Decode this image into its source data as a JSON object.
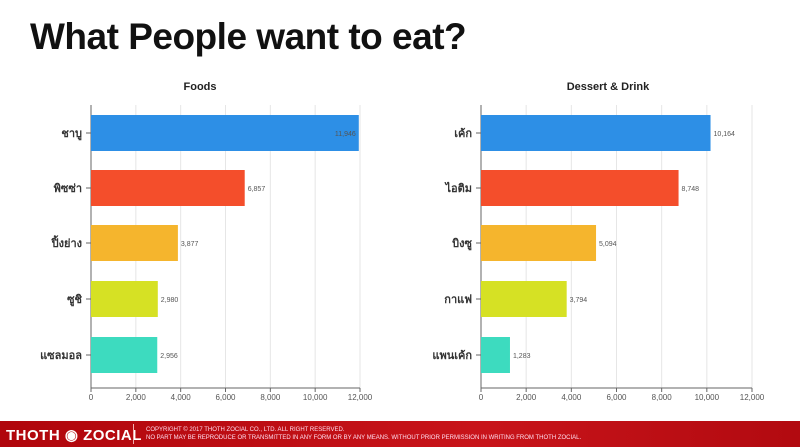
{
  "title": "What People want to eat?",
  "footer": {
    "brand": "THOTH ◉ ZOCIAL",
    "line1": "COPYRIGHT © 2017 THOTH ZOCIAL CO., LTD. ALL RIGHT RESERVED.",
    "line2": "NO PART MAY BE REPRODUCE OR TRANSMITTED IN ANY FORM OR BY ANY MEANS. WITHOUT PRIOR PERMISSION IN WRITING FROM THOTH ZOCIAL."
  },
  "chart_data": [
    {
      "type": "bar",
      "orientation": "horizontal",
      "title": "Foods",
      "categories": [
        "ชาบู",
        "พิซซ่า",
        "ปิ้งย่าง",
        "ซูชิ",
        "แซลมอล"
      ],
      "values": [
        11946,
        6857,
        3877,
        2980,
        2956
      ],
      "labels": [
        "11,946",
        "6,857",
        "3,877",
        "2,980",
        "2,956"
      ],
      "colors": [
        "#2d8fe6",
        "#f44e2b",
        "#f5b52d",
        "#d6e124",
        "#3ddbbf"
      ],
      "xlim": [
        0,
        12000
      ],
      "ticks": [
        "0",
        "2,000",
        "4,000",
        "6,000",
        "8,000",
        "10,000",
        "12,000"
      ],
      "grid": true
    },
    {
      "type": "bar",
      "orientation": "horizontal",
      "title": "Dessert & Drink",
      "categories": [
        "เค้ก",
        "ไอติม",
        "บิงซู",
        "กาแฟ",
        "แพนเค้ก"
      ],
      "values": [
        10164,
        8748,
        5094,
        3794,
        1283
      ],
      "labels": [
        "10,164",
        "8,748",
        "5,094",
        "3,794",
        "1,283"
      ],
      "colors": [
        "#2d8fe6",
        "#f44e2b",
        "#f5b52d",
        "#d6e124",
        "#3ddbbf"
      ],
      "xlim": [
        0,
        12000
      ],
      "ticks": [
        "0",
        "2,000",
        "4,000",
        "6,000",
        "8,000",
        "10,000",
        "12,000"
      ],
      "grid": true
    }
  ]
}
